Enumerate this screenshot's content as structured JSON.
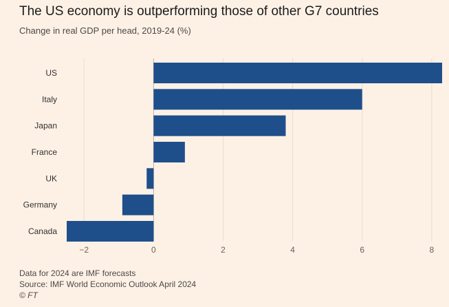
{
  "chart_data": {
    "type": "bar",
    "orientation": "horizontal",
    "title": "The US economy is outperforming those of other G7 countries",
    "subtitle": "Change in real GDP per head, 2019-24 (%)",
    "categories": [
      "US",
      "Italy",
      "Japan",
      "France",
      "UK",
      "Germany",
      "Canada"
    ],
    "values": [
      8.3,
      6.0,
      3.8,
      0.9,
      -0.2,
      -0.9,
      -2.5
    ],
    "xlim": [
      -2.5,
      8.3
    ],
    "xticks": [
      -2,
      0,
      2,
      4,
      6,
      8
    ],
    "grid": true,
    "bar_color": "#1e4f8b"
  },
  "notes": {
    "forecast": "Data for 2024 are IMF forecasts",
    "source": "Source: IMF World Economic Outlook April 2024",
    "credit": "© FT"
  }
}
